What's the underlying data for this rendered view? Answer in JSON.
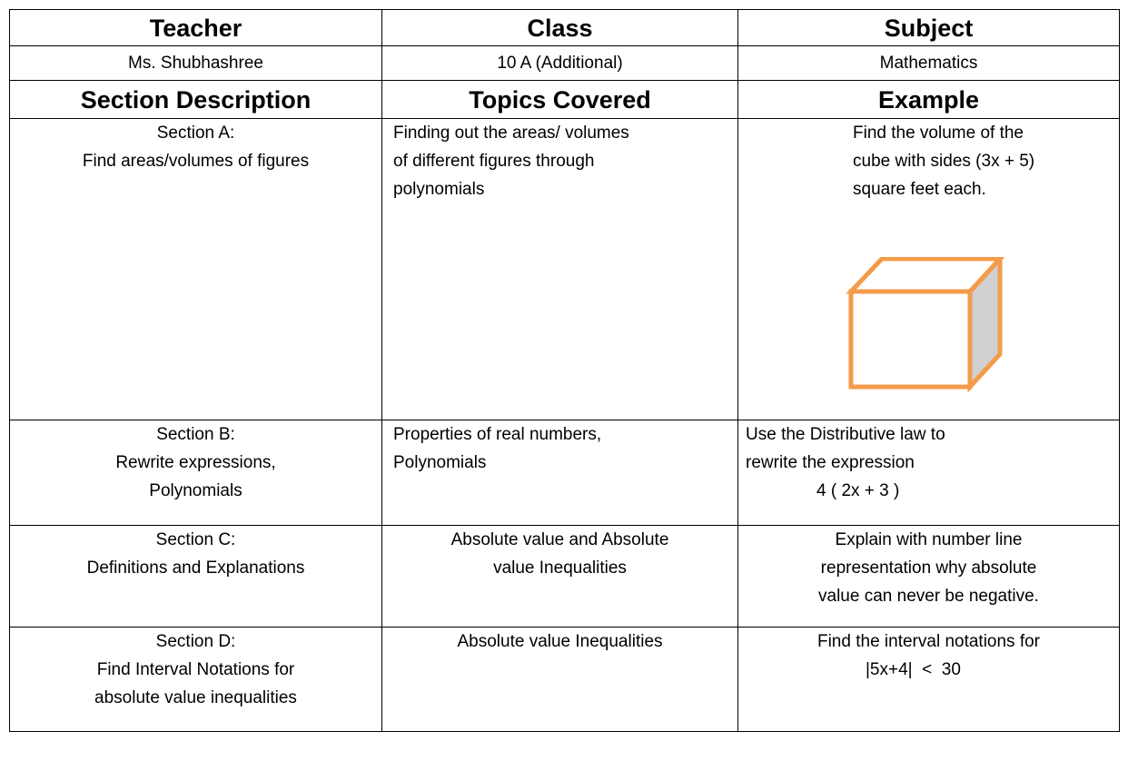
{
  "table": {
    "header": [
      "Teacher",
      "Class",
      "Subject"
    ],
    "info": [
      "Ms. Shubhashree",
      "10 A (Additional)",
      "Mathematics"
    ],
    "columns": [
      "Section Description",
      "Topics Covered",
      "Example"
    ],
    "rows": [
      [
        [
          "Section A:",
          "Find areas/volumes of figures"
        ],
        [
          "Finding out the areas/ volumes",
          "of different figures through",
          "polynomials"
        ],
        [
          "Find the volume of the",
          "cube with sides (3x + 5)",
          "square feet each."
        ]
      ],
      [
        [
          "Section B:",
          "Rewrite expressions,",
          "Polynomials"
        ],
        [
          "Properties of real numbers,",
          "Polynomials"
        ],
        [
          "Use the Distributive law to",
          "rewrite the expression",
          "4 ( 2x + 3 )"
        ]
      ],
      [
        [
          "Section C:",
          "Definitions and Explanations"
        ],
        [
          "Absolute value and Absolute",
          "value Inequalities"
        ],
        [
          "Explain with number line",
          "representation why absolute",
          "value can never be negative."
        ]
      ],
      [
        [
          "Section D:",
          "Find Interval Notations for",
          "absolute value inequalities"
        ],
        [
          "Absolute value Inequalities"
        ],
        [
          "Find the interval notations for",
          "|5x+4|  <  30"
        ]
      ]
    ]
  }
}
